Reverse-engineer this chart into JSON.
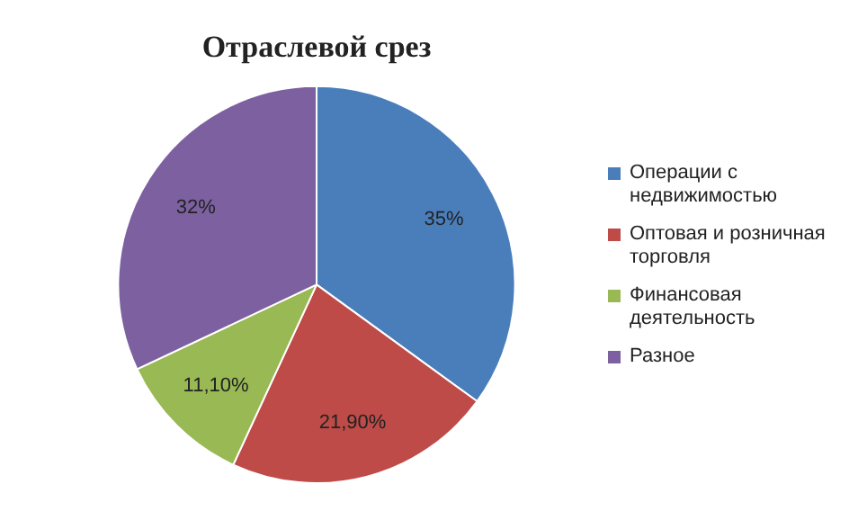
{
  "chart_data": {
    "type": "pie",
    "title": "Отраслевой срез",
    "categories": [
      "Операции с недвижимостью",
      "Оптовая и розничная торговля",
      "Финансовая деятельность",
      "Разное"
    ],
    "values": [
      35,
      21.9,
      11.1,
      32
    ],
    "value_labels": [
      "35%",
      "21,90%",
      "11,10%",
      "32%"
    ],
    "colors": [
      "#4a7ebb",
      "#be4b48",
      "#98b954",
      "#7d60a0"
    ],
    "legend": "right"
  }
}
